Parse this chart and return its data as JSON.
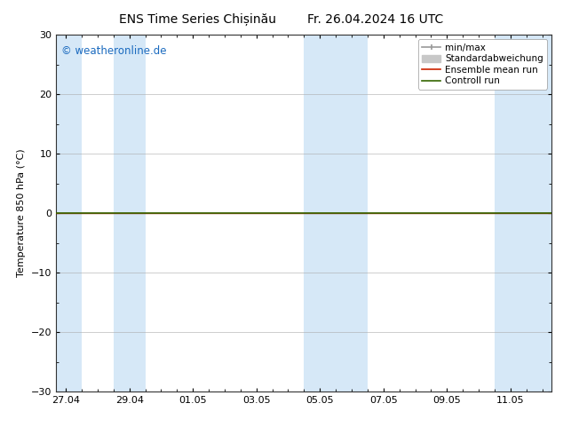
{
  "title": "ENS Time Series Chișinău        Fr. 26.04.2024 16 UTC",
  "ylabel": "Temperature 850 hPa (°C)",
  "copyright_text": "© weatheronline.de",
  "copyright_color": "#1a6abf",
  "ylim": [
    -30,
    30
  ],
  "yticks": [
    -30,
    -20,
    -10,
    0,
    10,
    20,
    30
  ],
  "bg_color": "#ffffff",
  "plot_bg_color": "#ffffff",
  "shaded_bands_color": "#d6e8f7",
  "zero_line_color": "#000000",
  "control_run_color": "#336600",
  "ensemble_mean_color": "#cc2200",
  "min_max_color": "#999999",
  "std_color": "#c8c8c8",
  "x_ticks_labels": [
    "27.04",
    "29.04",
    "01.05",
    "03.05",
    "05.05",
    "07.05",
    "09.05",
    "11.05"
  ],
  "x_ticks_values": [
    0,
    2,
    4,
    6,
    8,
    10,
    12,
    14
  ],
  "x_min": -0.3,
  "x_max": 15.3,
  "shaded_regions": [
    [
      -0.3,
      0.5
    ],
    [
      1.5,
      2.5
    ],
    [
      7.5,
      9.5
    ],
    [
      13.5,
      15.3
    ]
  ],
  "legend_entries": [
    {
      "label": "min/max",
      "type": "errorbar",
      "color": "#999999"
    },
    {
      "label": "Standardabweichung",
      "type": "fill",
      "color": "#c8c8c8"
    },
    {
      "label": "Ensemble mean run",
      "type": "line",
      "color": "#cc2200"
    },
    {
      "label": "Controll run",
      "type": "line",
      "color": "#336600"
    }
  ],
  "title_fontsize": 10,
  "label_fontsize": 8,
  "tick_fontsize": 8,
  "legend_fontsize": 7.5
}
